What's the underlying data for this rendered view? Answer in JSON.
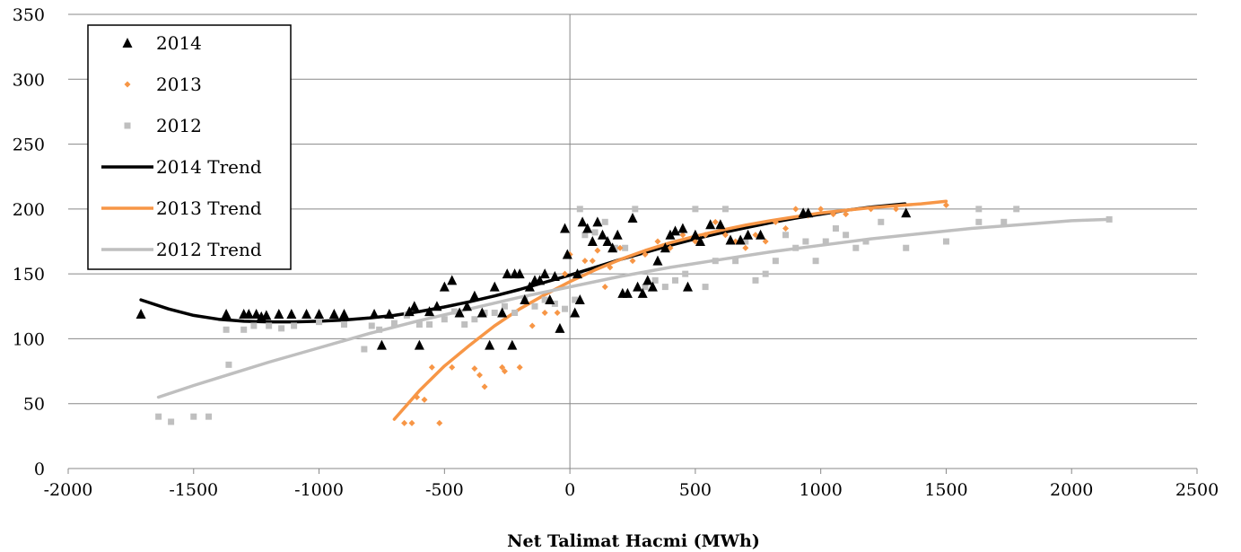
{
  "chart_data": {
    "type": "scatter",
    "title": "",
    "xlabel": "Net Talimat Hacmi (MWh)",
    "ylabel": "",
    "xlim": [
      -2000,
      2500
    ],
    "ylim": [
      0,
      350
    ],
    "xticks": [
      -2000,
      -1500,
      -1000,
      -500,
      0,
      500,
      1000,
      1500,
      2000,
      2500
    ],
    "yticks": [
      0,
      50,
      100,
      150,
      200,
      250,
      300,
      350
    ],
    "grid": "horizontal",
    "legend_position": "top-left",
    "series": [
      {
        "name": "2014",
        "marker": "triangle",
        "color": "#000000",
        "points": [
          [
            -1710,
            119
          ],
          [
            -1370,
            119
          ],
          [
            -1300,
            119
          ],
          [
            -1280,
            119
          ],
          [
            -1250,
            119
          ],
          [
            -1230,
            117
          ],
          [
            -1210,
            118
          ],
          [
            -1160,
            119
          ],
          [
            -1110,
            119
          ],
          [
            -1050,
            119
          ],
          [
            -1000,
            119
          ],
          [
            -940,
            119
          ],
          [
            -900,
            119
          ],
          [
            -780,
            119
          ],
          [
            -750,
            95
          ],
          [
            -720,
            119
          ],
          [
            -640,
            121
          ],
          [
            -620,
            125
          ],
          [
            -600,
            95
          ],
          [
            -560,
            121
          ],
          [
            -530,
            125
          ],
          [
            -500,
            140
          ],
          [
            -470,
            145
          ],
          [
            -440,
            120
          ],
          [
            -410,
            125
          ],
          [
            -380,
            133
          ],
          [
            -350,
            120
          ],
          [
            -320,
            95
          ],
          [
            -300,
            140
          ],
          [
            -270,
            120
          ],
          [
            -250,
            150
          ],
          [
            -230,
            95
          ],
          [
            -220,
            150
          ],
          [
            -200,
            150
          ],
          [
            -180,
            130
          ],
          [
            -160,
            140
          ],
          [
            -140,
            145
          ],
          [
            -120,
            145
          ],
          [
            -100,
            150
          ],
          [
            -80,
            130
          ],
          [
            -60,
            148
          ],
          [
            -40,
            108
          ],
          [
            -20,
            185
          ],
          [
            -10,
            165
          ],
          [
            20,
            120
          ],
          [
            30,
            150
          ],
          [
            40,
            130
          ],
          [
            50,
            190
          ],
          [
            70,
            185
          ],
          [
            90,
            175
          ],
          [
            110,
            190
          ],
          [
            130,
            180
          ],
          [
            150,
            175
          ],
          [
            170,
            170
          ],
          [
            190,
            180
          ],
          [
            210,
            135
          ],
          [
            230,
            135
          ],
          [
            250,
            193
          ],
          [
            270,
            140
          ],
          [
            290,
            135
          ],
          [
            310,
            145
          ],
          [
            330,
            140
          ],
          [
            350,
            160
          ],
          [
            380,
            170
          ],
          [
            400,
            180
          ],
          [
            420,
            183
          ],
          [
            450,
            185
          ],
          [
            470,
            140
          ],
          [
            500,
            180
          ],
          [
            520,
            175
          ],
          [
            560,
            188
          ],
          [
            600,
            188
          ],
          [
            640,
            176
          ],
          [
            680,
            176
          ],
          [
            710,
            180
          ],
          [
            760,
            180
          ],
          [
            930,
            197
          ],
          [
            950,
            197
          ],
          [
            1340,
            197
          ]
        ]
      },
      {
        "name": "2013",
        "marker": "diamond",
        "color": "#f79646",
        "points": [
          [
            -660,
            35
          ],
          [
            -630,
            35
          ],
          [
            -610,
            55
          ],
          [
            -580,
            53
          ],
          [
            -550,
            78
          ],
          [
            -520,
            35
          ],
          [
            -470,
            78
          ],
          [
            -380,
            77
          ],
          [
            -360,
            72
          ],
          [
            -340,
            63
          ],
          [
            -270,
            78
          ],
          [
            -260,
            75
          ],
          [
            -200,
            78
          ],
          [
            -150,
            110
          ],
          [
            -100,
            120
          ],
          [
            -50,
            120
          ],
          [
            -20,
            150
          ],
          [
            0,
            165
          ],
          [
            30,
            150
          ],
          [
            60,
            160
          ],
          [
            90,
            160
          ],
          [
            110,
            168
          ],
          [
            140,
            140
          ],
          [
            160,
            155
          ],
          [
            200,
            170
          ],
          [
            250,
            160
          ],
          [
            300,
            165
          ],
          [
            350,
            175
          ],
          [
            400,
            170
          ],
          [
            450,
            180
          ],
          [
            500,
            175
          ],
          [
            540,
            180
          ],
          [
            580,
            190
          ],
          [
            620,
            180
          ],
          [
            660,
            175
          ],
          [
            700,
            170
          ],
          [
            740,
            180
          ],
          [
            780,
            175
          ],
          [
            820,
            190
          ],
          [
            860,
            185
          ],
          [
            900,
            200
          ],
          [
            950,
            195
          ],
          [
            1000,
            200
          ],
          [
            1050,
            196
          ],
          [
            1100,
            196
          ],
          [
            1200,
            200
          ],
          [
            1300,
            200
          ],
          [
            1500,
            203
          ]
        ]
      },
      {
        "name": "2012",
        "marker": "square",
        "color": "#bfbfbf",
        "points": [
          [
            -1640,
            40
          ],
          [
            -1590,
            36
          ],
          [
            -1500,
            40
          ],
          [
            -1440,
            40
          ],
          [
            -1360,
            80
          ],
          [
            -1370,
            107
          ],
          [
            -1300,
            107
          ],
          [
            -1260,
            110
          ],
          [
            -1200,
            110
          ],
          [
            -1150,
            108
          ],
          [
            -1100,
            110
          ],
          [
            -1000,
            113
          ],
          [
            -900,
            111
          ],
          [
            -820,
            92
          ],
          [
            -790,
            110
          ],
          [
            -760,
            107
          ],
          [
            -700,
            112
          ],
          [
            -650,
            118
          ],
          [
            -600,
            111
          ],
          [
            -560,
            111
          ],
          [
            -500,
            115
          ],
          [
            -460,
            121
          ],
          [
            -420,
            111
          ],
          [
            -380,
            115
          ],
          [
            -340,
            120
          ],
          [
            -300,
            120
          ],
          [
            -260,
            125
          ],
          [
            -220,
            120
          ],
          [
            -180,
            130
          ],
          [
            -140,
            125
          ],
          [
            -100,
            130
          ],
          [
            -60,
            127
          ],
          [
            -20,
            123
          ],
          [
            20,
            130
          ],
          [
            40,
            200
          ],
          [
            60,
            180
          ],
          [
            100,
            182
          ],
          [
            140,
            190
          ],
          [
            180,
            170
          ],
          [
            220,
            170
          ],
          [
            260,
            200
          ],
          [
            300,
            140
          ],
          [
            340,
            145
          ],
          [
            380,
            140
          ],
          [
            420,
            145
          ],
          [
            460,
            150
          ],
          [
            500,
            200
          ],
          [
            540,
            140
          ],
          [
            580,
            160
          ],
          [
            620,
            200
          ],
          [
            660,
            160
          ],
          [
            700,
            175
          ],
          [
            740,
            145
          ],
          [
            780,
            150
          ],
          [
            820,
            160
          ],
          [
            860,
            180
          ],
          [
            900,
            170
          ],
          [
            940,
            175
          ],
          [
            980,
            160
          ],
          [
            1020,
            175
          ],
          [
            1060,
            185
          ],
          [
            1100,
            180
          ],
          [
            1140,
            170
          ],
          [
            1180,
            175
          ],
          [
            1240,
            190
          ],
          [
            1340,
            170
          ],
          [
            1500,
            175
          ],
          [
            1630,
            190
          ],
          [
            1630,
            200
          ],
          [
            1730,
            190
          ],
          [
            1780,
            200
          ],
          [
            2150,
            192
          ]
        ]
      }
    ],
    "trends": [
      {
        "name": "2014 Trend",
        "color": "#000000",
        "points": [
          [
            -1710,
            130
          ],
          [
            -1600,
            123
          ],
          [
            -1500,
            118
          ],
          [
            -1400,
            115
          ],
          [
            -1300,
            113.5
          ],
          [
            -1200,
            113
          ],
          [
            -1100,
            113
          ],
          [
            -1000,
            113.5
          ],
          [
            -900,
            114.5
          ],
          [
            -800,
            116
          ],
          [
            -700,
            118
          ],
          [
            -600,
            121
          ],
          [
            -500,
            124.5
          ],
          [
            -400,
            128.5
          ],
          [
            -300,
            133
          ],
          [
            -200,
            138
          ],
          [
            -100,
            143.5
          ],
          [
            0,
            149
          ],
          [
            100,
            155
          ],
          [
            200,
            161
          ],
          [
            300,
            166.5
          ],
          [
            400,
            172
          ],
          [
            500,
            177
          ],
          [
            600,
            181.5
          ],
          [
            700,
            185.5
          ],
          [
            800,
            189.5
          ],
          [
            900,
            193
          ],
          [
            1000,
            196
          ],
          [
            1100,
            199
          ],
          [
            1200,
            201.5
          ],
          [
            1336,
            204
          ]
        ]
      },
      {
        "name": "2013 Trend",
        "color": "#f79646",
        "points": [
          [
            -700,
            38
          ],
          [
            -600,
            60
          ],
          [
            -500,
            79
          ],
          [
            -400,
            95
          ],
          [
            -300,
            110
          ],
          [
            -200,
            123
          ],
          [
            -100,
            134
          ],
          [
            0,
            144
          ],
          [
            100,
            153
          ],
          [
            200,
            161
          ],
          [
            300,
            168
          ],
          [
            400,
            174
          ],
          [
            500,
            179
          ],
          [
            600,
            183.5
          ],
          [
            700,
            187.5
          ],
          [
            800,
            191
          ],
          [
            900,
            194
          ],
          [
            1000,
            197
          ],
          [
            1100,
            199
          ],
          [
            1200,
            201
          ],
          [
            1300,
            202.5
          ],
          [
            1400,
            204
          ],
          [
            1500,
            206
          ]
        ]
      },
      {
        "name": "2012 Trend",
        "color": "#bfbfbf",
        "points": [
          [
            -1640,
            55
          ],
          [
            -1500,
            64
          ],
          [
            -1400,
            70
          ],
          [
            -1200,
            82
          ],
          [
            -1000,
            93
          ],
          [
            -800,
            104
          ],
          [
            -600,
            114
          ],
          [
            -400,
            123
          ],
          [
            -200,
            132
          ],
          [
            0,
            140
          ],
          [
            200,
            148
          ],
          [
            400,
            155
          ],
          [
            600,
            161
          ],
          [
            800,
            167
          ],
          [
            1000,
            172
          ],
          [
            1200,
            177
          ],
          [
            1400,
            181
          ],
          [
            1600,
            185
          ],
          [
            1800,
            188
          ],
          [
            2000,
            191
          ],
          [
            2150,
            192
          ]
        ]
      }
    ],
    "legend": [
      "2014",
      "2013",
      "2012",
      "2014 Trend",
      "2013 Trend",
      "2012 Trend"
    ]
  }
}
